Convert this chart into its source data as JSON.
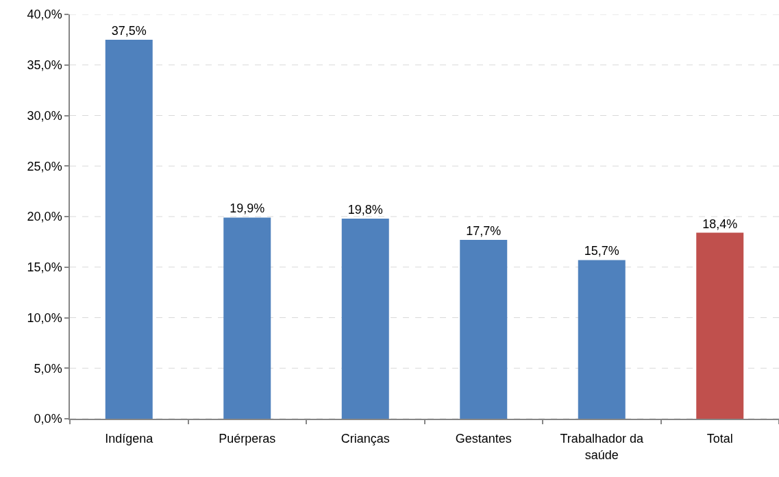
{
  "chart_data": {
    "type": "bar",
    "categories": [
      "Indígena",
      "Puérperas",
      "Crianças",
      "Gestantes",
      "Trabalhador da saúde",
      "Total"
    ],
    "values": [
      37.5,
      19.9,
      19.8,
      17.7,
      15.7,
      18.4
    ],
    "colors": [
      "#4f81bd",
      "#4f81bd",
      "#4f81bd",
      "#4f81bd",
      "#4f81bd",
      "#c0504d"
    ],
    "value_labels": [
      "37,5%",
      "19,9%",
      "19,8%",
      "17,7%",
      "15,7%",
      "18,4%"
    ],
    "ylim": [
      0,
      40
    ],
    "yticks": [
      {
        "value": 0,
        "label": "0,0%"
      },
      {
        "value": 5,
        "label": "5,0%"
      },
      {
        "value": 10,
        "label": "10,0%"
      },
      {
        "value": 15,
        "label": "15,0%"
      },
      {
        "value": 20,
        "label": "20,0%"
      },
      {
        "value": 25,
        "label": "25,0%"
      },
      {
        "value": 30,
        "label": "30,0%"
      },
      {
        "value": 35,
        "label": "35,0%"
      },
      {
        "value": 40,
        "label": "40,0%"
      }
    ],
    "grid": "y"
  }
}
